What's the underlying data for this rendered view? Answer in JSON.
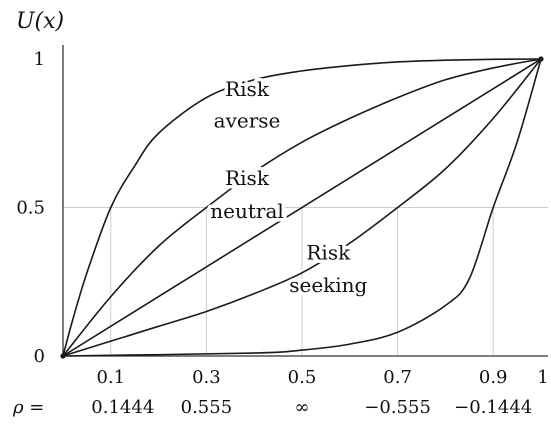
{
  "chart_data": {
    "type": "line",
    "ylabel": "U(x)",
    "xlim": [
      0,
      1
    ],
    "ylim": [
      0,
      1
    ],
    "x_ticks": [
      "0.1",
      "0.3",
      "0.5",
      "0.7",
      "0.9",
      "1"
    ],
    "y_ticks": [
      "0",
      "0.5",
      "1"
    ],
    "rho_prefix": "ρ =",
    "rho_values": [
      "0.1444",
      "0.555",
      "∞",
      "−0.555",
      "−0.1444"
    ],
    "grid": true,
    "grid_x": [
      0.1,
      0.3,
      0.5,
      0.7,
      0.9
    ],
    "grid_y": [
      0.5
    ],
    "series": [
      {
        "rho": "0.1444",
        "x": [
          0,
          0.02,
          0.05,
          0.1,
          0.15,
          0.2,
          0.3,
          0.4,
          0.5,
          0.6,
          0.7,
          0.8,
          0.9,
          1
        ],
        "y": [
          0,
          0.12,
          0.28,
          0.5,
          0.64,
          0.75,
          0.87,
          0.93,
          0.96,
          0.978,
          0.99,
          0.996,
          0.999,
          1
        ]
      },
      {
        "rho": "0.555",
        "x": [
          0,
          0.1,
          0.2,
          0.3,
          0.4,
          0.5,
          0.6,
          0.7,
          0.8,
          0.9,
          1
        ],
        "y": [
          0,
          0.2,
          0.37,
          0.5,
          0.62,
          0.72,
          0.8,
          0.87,
          0.93,
          0.97,
          1
        ]
      },
      {
        "rho": "∞",
        "x": [
          0,
          1
        ],
        "y": [
          0,
          1
        ]
      },
      {
        "rho": "−0.555",
        "x": [
          0,
          0.1,
          0.2,
          0.3,
          0.4,
          0.5,
          0.6,
          0.7,
          0.8,
          0.9,
          1
        ],
        "y": [
          0,
          0.05,
          0.1,
          0.15,
          0.21,
          0.28,
          0.38,
          0.5,
          0.63,
          0.8,
          1
        ]
      },
      {
        "rho": "−0.1444",
        "x": [
          0,
          0.4,
          0.5,
          0.6,
          0.7,
          0.8,
          0.85,
          0.9,
          0.95,
          1
        ],
        "y": [
          0,
          0.01,
          0.02,
          0.04,
          0.08,
          0.17,
          0.26,
          0.5,
          0.72,
          1
        ]
      }
    ],
    "annotations": [
      {
        "lines": [
          "Risk",
          "averse"
        ],
        "x": 0.77,
        "y_lines": [
          0.875,
          0.77
        ]
      },
      {
        "lines": [
          "Risk",
          "neutral"
        ],
        "x": 0.77,
        "y_lines": [
          0.575,
          0.465
        ]
      },
      {
        "lines": [
          "Risk",
          "seeking"
        ],
        "x": 1.11,
        "y_lines": [
          0.325,
          0.215
        ]
      }
    ]
  }
}
